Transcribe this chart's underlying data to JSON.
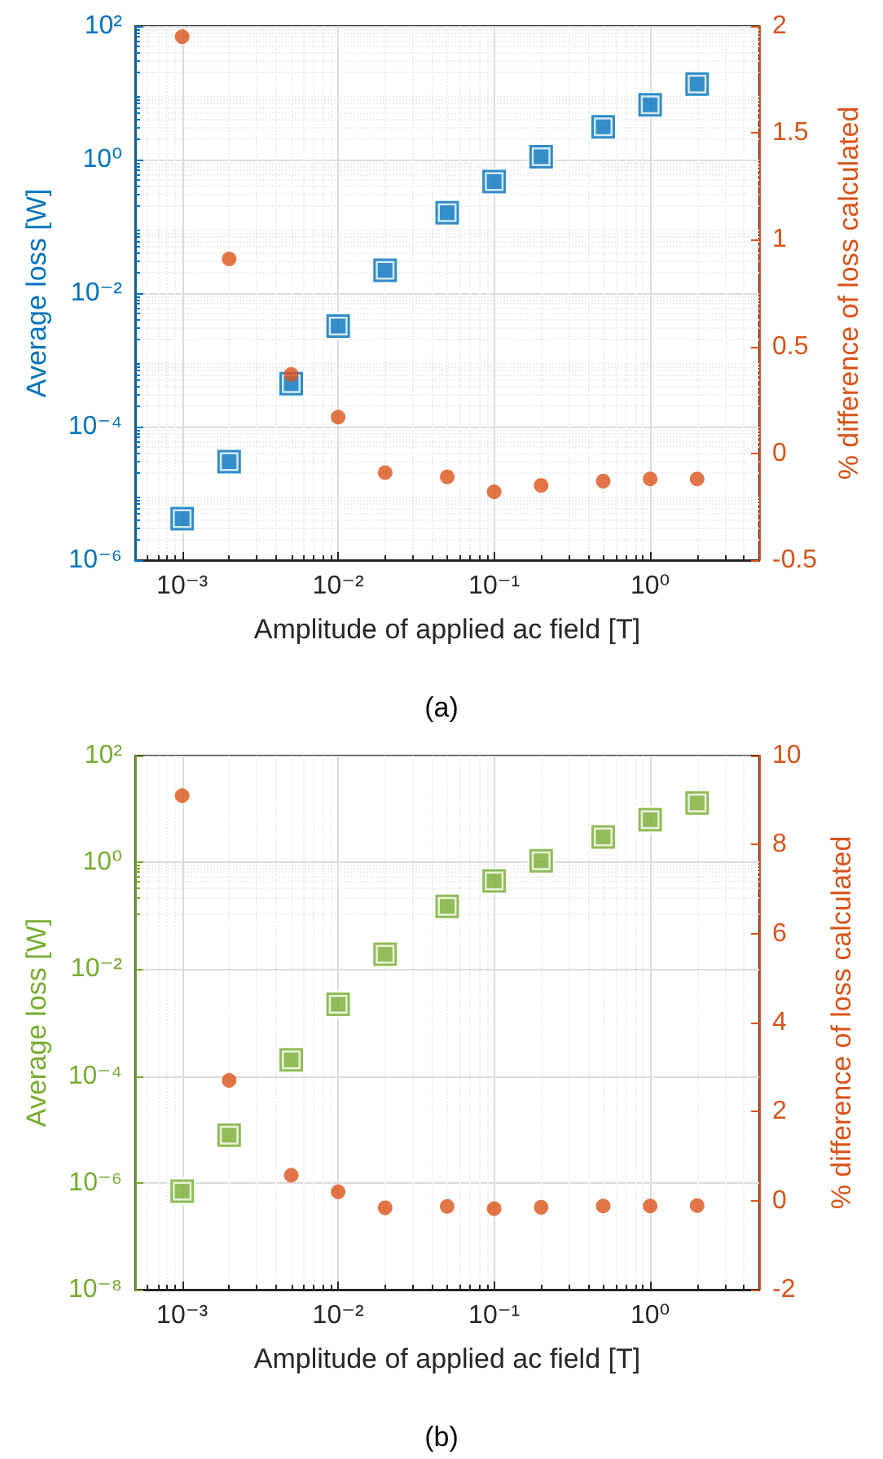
{
  "chart_data": [
    {
      "type": "scatter",
      "title": "(a)",
      "xlabel": "Amplitude of applied ac field [T]",
      "ylabel": "Average loss [W]",
      "y2label": "% difference of loss calculated",
      "log": "xy",
      "grid": true,
      "x": [
        0.001,
        0.002,
        0.005,
        0.01,
        0.02,
        0.05,
        0.1,
        0.2,
        0.5,
        1,
        2
      ],
      "xlim": [
        0.0005,
        5
      ],
      "xticks": [
        {
          "value": 0.001,
          "label": "10⁻³"
        },
        {
          "value": 0.01,
          "label": "10⁻²"
        },
        {
          "value": 0.1,
          "label": "10⁻¹"
        },
        {
          "value": 1,
          "label": "10⁰"
        }
      ],
      "ylim": [
        1e-06,
        100
      ],
      "yticks": [
        {
          "value": 1e-06,
          "label": "10⁻⁶"
        },
        {
          "value": 0.0001,
          "label": "10⁻⁴"
        },
        {
          "value": 0.01,
          "label": "10⁻²"
        },
        {
          "value": 1,
          "label": "10⁰"
        },
        {
          "value": 100,
          "label": "10²"
        }
      ],
      "y2lim": [
        -0.5,
        2
      ],
      "y2ticks": [
        -0.5,
        0,
        0.5,
        1,
        1.5,
        2
      ],
      "series": [
        {
          "color": "#0072bd",
          "marker": "square",
          "values": [
            4.2e-06,
            3e-05,
            0.00044,
            0.0032,
            0.022,
            0.16,
            0.47,
            1.1,
            3.1,
            6.6,
            13.5
          ]
        },
        {
          "color": "#0072bd",
          "marker": "square",
          "values": [
            4.2e-06,
            3e-05,
            0.00044,
            0.0032,
            0.022,
            0.16,
            0.47,
            1.1,
            3.1,
            6.6,
            13.5
          ]
        },
        {
          "color": "#d95319",
          "marker": "circle",
          "axis": "y2",
          "values": [
            1.95,
            0.91,
            0.37,
            0.17,
            -0.09,
            -0.11,
            -0.18,
            -0.15,
            -0.13,
            -0.12,
            -0.12
          ]
        }
      ]
    },
    {
      "type": "scatter",
      "title": "(b)",
      "xlabel": "Amplitude of applied ac field [T]",
      "ylabel": "Average loss [W]",
      "y2label": "% difference of loss calculated",
      "log": "xy",
      "grid": true,
      "x": [
        0.001,
        0.002,
        0.005,
        0.01,
        0.02,
        0.05,
        0.1,
        0.2,
        0.5,
        1,
        2
      ],
      "xlim": [
        0.0005,
        5
      ],
      "xticks": [
        {
          "value": 0.001,
          "label": "10⁻³"
        },
        {
          "value": 0.01,
          "label": "10⁻²"
        },
        {
          "value": 0.1,
          "label": "10⁻¹"
        },
        {
          "value": 1,
          "label": "10⁰"
        }
      ],
      "ylim": [
        1e-08,
        100
      ],
      "yticks": [
        {
          "value": 1e-08,
          "label": "10⁻⁸"
        },
        {
          "value": 1e-06,
          "label": "10⁻⁶"
        },
        {
          "value": 0.0001,
          "label": "10⁻⁴"
        },
        {
          "value": 0.01,
          "label": "10⁻²"
        },
        {
          "value": 1,
          "label": "10⁰"
        },
        {
          "value": 100,
          "label": "10²"
        }
      ],
      "y2lim": [
        -2,
        10
      ],
      "y2ticks": [
        -2,
        0,
        2,
        4,
        6,
        8,
        10
      ],
      "series": [
        {
          "color": "#77ac30",
          "marker": "square",
          "values": [
            7e-07,
            7.8e-06,
            0.0002,
            0.0022,
            0.019,
            0.15,
            0.45,
            1.07,
            3,
            6.3,
            13
          ]
        },
        {
          "color": "#77ac30",
          "marker": "square",
          "values": [
            7e-07,
            7.8e-06,
            0.0002,
            0.0022,
            0.019,
            0.15,
            0.45,
            1.07,
            3,
            6.3,
            13
          ]
        },
        {
          "color": "#d95319",
          "marker": "circle",
          "axis": "y2",
          "values": [
            9.1,
            2.7,
            0.57,
            0.2,
            -0.16,
            -0.13,
            -0.18,
            -0.15,
            -0.12,
            -0.12,
            -0.11
          ]
        }
      ]
    }
  ]
}
